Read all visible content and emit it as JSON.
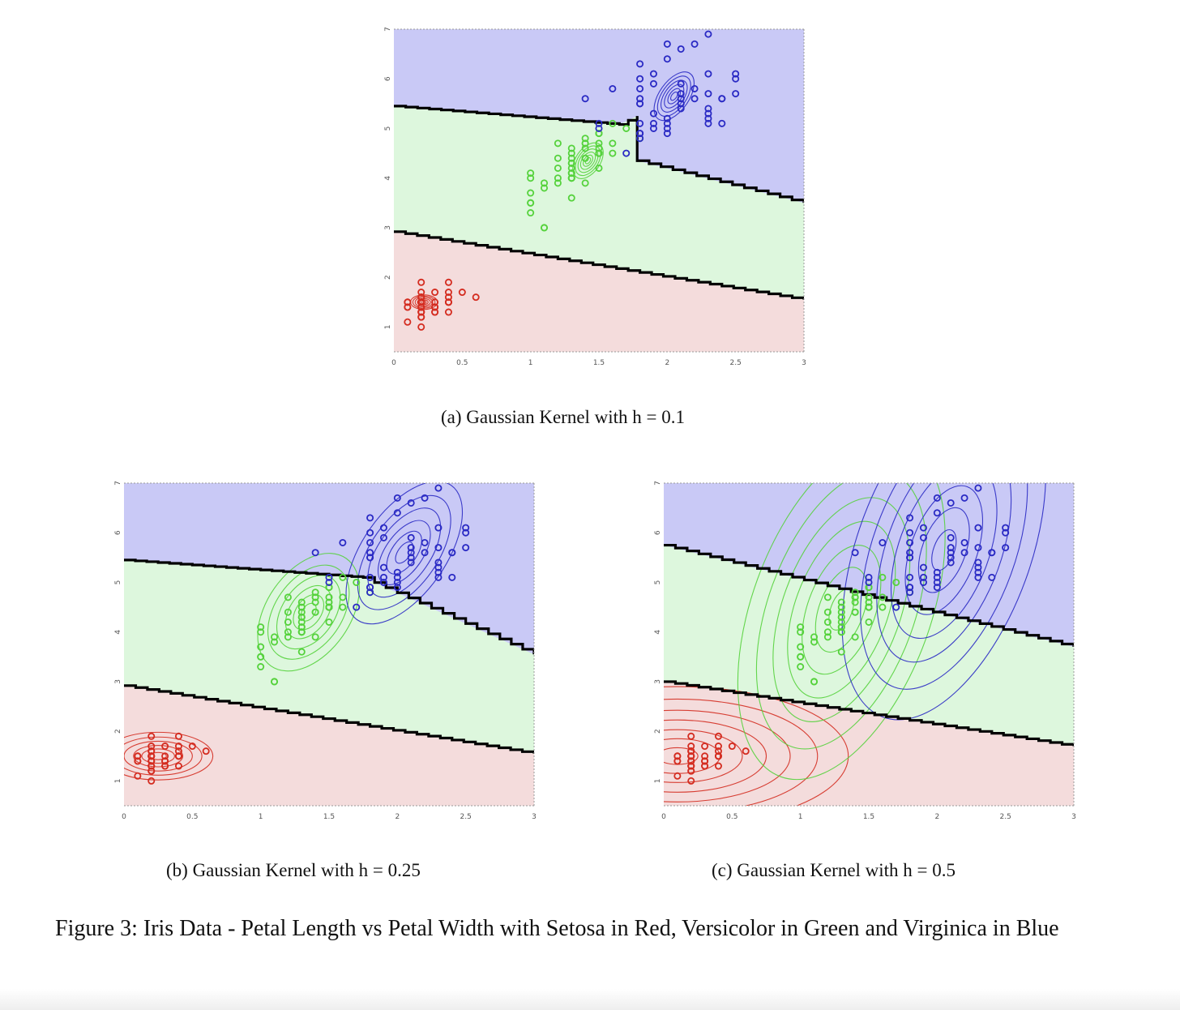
{
  "colors": {
    "setosa": "#d42c20",
    "versicolor": "#55d23c",
    "virginica": "#2a2ac4",
    "region_setosa": "#f4dcdc",
    "region_versicolor": "#ddf7dd",
    "region_virginica": "#c9c9f6",
    "boundary": "#000000"
  },
  "chart_data": [
    {
      "type": "scatter",
      "subcaption": "(a) Gaussian Kernel with h = 0.1",
      "h": 0.1,
      "xlim": [
        0,
        3
      ],
      "ylim": [
        0.5,
        7
      ],
      "xticks": [
        0,
        0.5,
        1,
        1.5,
        2,
        2.5,
        3
      ],
      "xtick_labels": [
        "0",
        "0.5",
        "1",
        "1.5",
        "2",
        "2.5",
        "3"
      ],
      "yticks": [
        1,
        2,
        3,
        4,
        5,
        6,
        7
      ],
      "ytick_labels": [
        "1",
        "2",
        "3",
        "4",
        "5",
        "6",
        "7"
      ],
      "boundary_setosa_versicolor": [
        [
          0,
          2.92
        ],
        [
          3,
          1.55
        ]
      ],
      "boundary_versicolor_virginica": [
        [
          0,
          5.45
        ],
        [
          1.65,
          5.08
        ],
        [
          1.78,
          5.25
        ],
        [
          1.78,
          4.35
        ],
        [
          3,
          3.5
        ]
      ],
      "contour_scale": [
        0.06,
        0.11,
        0.17,
        0.23,
        0.29,
        0.35
      ],
      "contours": [
        {
          "class": "setosa",
          "cx": 0.22,
          "cy": 1.5,
          "rx": 0.28,
          "ry": 0.42,
          "rot": 0
        },
        {
          "class": "versicolor",
          "cx": 1.42,
          "cy": 4.35,
          "rx": 0.42,
          "ry": 0.7,
          "rot": -55
        },
        {
          "class": "virginica",
          "cx": 2.05,
          "cy": 5.65,
          "rx": 0.58,
          "ry": 0.85,
          "rot": -55
        }
      ]
    },
    {
      "type": "scatter",
      "subcaption": "(b) Gaussian Kernel with h = 0.25",
      "h": 0.25,
      "xlim": [
        0,
        3
      ],
      "ylim": [
        0.5,
        7
      ],
      "xticks": [
        0,
        0.5,
        1,
        1.5,
        2,
        2.5,
        3
      ],
      "xtick_labels": [
        "0",
        "0.5",
        "1",
        "1.5",
        "2",
        "2.5",
        "3"
      ],
      "yticks": [
        1,
        2,
        3,
        4,
        5,
        6,
        7
      ],
      "ytick_labels": [
        "1",
        "2",
        "3",
        "4",
        "5",
        "6",
        "7"
      ],
      "boundary_setosa_versicolor": [
        [
          0,
          2.92
        ],
        [
          3,
          1.55
        ]
      ],
      "boundary_versicolor_virginica": [
        [
          0,
          5.45
        ],
        [
          1.75,
          5.1
        ],
        [
          3,
          3.55
        ]
      ],
      "contour_scale": [
        0.12,
        0.24,
        0.36,
        0.5,
        0.64,
        0.8
      ],
      "contours": [
        {
          "class": "setosa",
          "cx": 0.25,
          "cy": 1.5,
          "rx": 0.5,
          "ry": 0.6,
          "rot": 0
        },
        {
          "class": "versicolor",
          "cx": 1.35,
          "cy": 4.4,
          "rx": 0.6,
          "ry": 1.05,
          "rot": -55
        },
        {
          "class": "virginica",
          "cx": 2.05,
          "cy": 5.6,
          "rx": 0.75,
          "ry": 1.05,
          "rot": -55
        }
      ]
    },
    {
      "type": "scatter",
      "subcaption": "(c) Gaussian Kernel with h = 0.5",
      "h": 0.5,
      "xlim": [
        0,
        3
      ],
      "ylim": [
        0.5,
        7
      ],
      "xticks": [
        0,
        0.5,
        1,
        1.5,
        2,
        2.5,
        3
      ],
      "xtick_labels": [
        "0",
        "0.5",
        "1",
        "1.5",
        "2",
        "2.5",
        "3"
      ],
      "yticks": [
        1,
        2,
        3,
        4,
        5,
        6,
        7
      ],
      "ytick_labels": [
        "1",
        "2",
        "3",
        "4",
        "5",
        "6",
        "7"
      ],
      "boundary_setosa_versicolor": [
        [
          0,
          3.0
        ],
        [
          3,
          1.7
        ]
      ],
      "boundary_versicolor_virginica": [
        [
          0,
          5.75
        ],
        [
          3,
          3.7
        ]
      ],
      "contour_scale": [
        0.12,
        0.25,
        0.38,
        0.52,
        0.66,
        0.82,
        1.0
      ],
      "contours": [
        {
          "class": "setosa",
          "cx": 0.1,
          "cy": 1.5,
          "rx": 1.25,
          "ry": 1.4,
          "rot": 0
        },
        {
          "class": "versicolor",
          "cx": 1.3,
          "cy": 4.45,
          "rx": 1.3,
          "ry": 1.8,
          "rot": -70
        },
        {
          "class": "virginica",
          "cx": 2.05,
          "cy": 5.65,
          "rx": 1.3,
          "ry": 1.75,
          "rot": -70
        }
      ]
    }
  ],
  "points": {
    "setosa": [
      [
        0.2,
        1.4
      ],
      [
        0.2,
        1.3
      ],
      [
        0.2,
        1.5
      ],
      [
        0.2,
        1.4
      ],
      [
        0.4,
        1.7
      ],
      [
        0.3,
        1.4
      ],
      [
        0.2,
        1.5
      ],
      [
        0.2,
        1.4
      ],
      [
        0.1,
        1.5
      ],
      [
        0.2,
        1.5
      ],
      [
        0.2,
        1.6
      ],
      [
        0.1,
        1.4
      ],
      [
        0.1,
        1.1
      ],
      [
        0.2,
        1.2
      ],
      [
        0.4,
        1.5
      ],
      [
        0.4,
        1.3
      ],
      [
        0.3,
        1.4
      ],
      [
        0.3,
        1.7
      ],
      [
        0.3,
        1.5
      ],
      [
        0.2,
        1.7
      ],
      [
        0.4,
        1.5
      ],
      [
        0.2,
        1.0
      ],
      [
        0.5,
        1.7
      ],
      [
        0.2,
        1.9
      ],
      [
        0.2,
        1.6
      ],
      [
        0.4,
        1.6
      ],
      [
        0.2,
        1.5
      ],
      [
        0.2,
        1.4
      ],
      [
        0.4,
        1.5
      ],
      [
        0.1,
        1.5
      ],
      [
        0.2,
        1.2
      ],
      [
        0.2,
        1.3
      ],
      [
        0.1,
        1.4
      ],
      [
        0.2,
        1.3
      ],
      [
        0.2,
        1.5
      ],
      [
        0.3,
        1.3
      ],
      [
        0.3,
        1.3
      ],
      [
        0.6,
        1.6
      ],
      [
        0.4,
        1.9
      ],
      [
        0.3,
        1.4
      ],
      [
        0.2,
        1.6
      ]
    ],
    "versicolor": [
      [
        1.4,
        4.7
      ],
      [
        1.5,
        4.5
      ],
      [
        1.5,
        4.9
      ],
      [
        1.3,
        4.0
      ],
      [
        1.5,
        4.6
      ],
      [
        1.3,
        4.5
      ],
      [
        1.6,
        4.7
      ],
      [
        1.0,
        3.3
      ],
      [
        1.3,
        4.6
      ],
      [
        1.4,
        3.9
      ],
      [
        1.0,
        3.5
      ],
      [
        1.5,
        4.2
      ],
      [
        1.0,
        4.0
      ],
      [
        1.4,
        4.7
      ],
      [
        1.3,
        3.6
      ],
      [
        1.4,
        4.4
      ],
      [
        1.5,
        4.5
      ],
      [
        1.0,
        4.1
      ],
      [
        1.5,
        4.5
      ],
      [
        1.1,
        3.9
      ],
      [
        1.8,
        4.8
      ],
      [
        1.3,
        4.0
      ],
      [
        1.5,
        4.9
      ],
      [
        1.2,
        4.7
      ],
      [
        1.3,
        4.3
      ],
      [
        1.4,
        4.4
      ],
      [
        1.4,
        4.8
      ],
      [
        1.7,
        5.0
      ],
      [
        1.5,
        4.5
      ],
      [
        1.0,
        3.5
      ],
      [
        1.1,
        3.8
      ],
      [
        1.0,
        3.7
      ],
      [
        1.2,
        3.9
      ],
      [
        1.6,
        5.1
      ],
      [
        1.5,
        4.5
      ],
      [
        1.6,
        4.5
      ],
      [
        1.5,
        4.7
      ],
      [
        1.3,
        4.4
      ],
      [
        1.3,
        4.1
      ],
      [
        1.3,
        4.0
      ],
      [
        1.2,
        4.4
      ],
      [
        1.4,
        4.6
      ],
      [
        1.2,
        4.0
      ],
      [
        1.1,
        3.0
      ],
      [
        1.3,
        4.2
      ],
      [
        1.2,
        4.2
      ],
      [
        1.3,
        4.3
      ],
      [
        1.1,
        3.0
      ],
      [
        1.3,
        4.1
      ]
    ],
    "virginica": [
      [
        2.5,
        6.0
      ],
      [
        1.9,
        5.1
      ],
      [
        2.1,
        5.9
      ],
      [
        1.8,
        5.6
      ],
      [
        2.2,
        5.8
      ],
      [
        2.1,
        6.6
      ],
      [
        1.7,
        4.5
      ],
      [
        1.8,
        6.3
      ],
      [
        1.8,
        5.8
      ],
      [
        2.5,
        6.1
      ],
      [
        2.0,
        5.1
      ],
      [
        1.9,
        5.3
      ],
      [
        2.1,
        5.5
      ],
      [
        2.0,
        5.0
      ],
      [
        2.4,
        5.1
      ],
      [
        2.3,
        5.3
      ],
      [
        1.8,
        5.5
      ],
      [
        2.2,
        6.7
      ],
      [
        2.3,
        6.9
      ],
      [
        1.5,
        5.0
      ],
      [
        2.3,
        5.7
      ],
      [
        2.0,
        4.9
      ],
      [
        2.0,
        6.7
      ],
      [
        1.8,
        4.9
      ],
      [
        2.1,
        5.7
      ],
      [
        1.8,
        6.0
      ],
      [
        1.8,
        4.8
      ],
      [
        1.8,
        4.9
      ],
      [
        2.1,
        5.6
      ],
      [
        1.6,
        5.8
      ],
      [
        1.9,
        6.1
      ],
      [
        2.0,
        6.4
      ],
      [
        2.2,
        5.6
      ],
      [
        1.5,
        5.1
      ],
      [
        1.4,
        5.6
      ],
      [
        2.3,
        6.1
      ],
      [
        2.4,
        5.6
      ],
      [
        1.8,
        5.5
      ],
      [
        2.1,
        5.4
      ],
      [
        2.4,
        5.6
      ],
      [
        2.3,
        5.1
      ],
      [
        1.9,
        5.9
      ],
      [
        2.5,
        5.7
      ],
      [
        2.3,
        5.2
      ],
      [
        1.9,
        5.0
      ],
      [
        2.0,
        5.2
      ],
      [
        2.3,
        5.4
      ],
      [
        1.8,
        5.1
      ]
    ]
  },
  "caption": "Figure 3: Iris Data - Petal Length vs Petal Width with Setosa in Red, Versicolor in Green and Virginica in Blue"
}
